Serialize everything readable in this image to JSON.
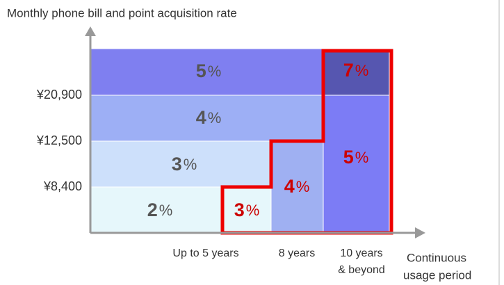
{
  "title": "Monthly phone bill and point acquisition rate",
  "y_labels": [
    "¥20,900",
    "¥12,500",
    "¥8,400"
  ],
  "x_labels": [
    [
      "Up to  5 years"
    ],
    [
      "8 years"
    ],
    [
      "10 years",
      "& beyond"
    ]
  ],
  "axis_label": [
    "Continuous",
    "usage period"
  ],
  "cells": [
    {
      "value": "5",
      "unit": "%"
    },
    {
      "value": "4",
      "unit": "%"
    },
    {
      "value": "3",
      "unit": "%"
    },
    {
      "value": "2",
      "unit": "%"
    },
    {
      "value": "3",
      "unit": "%"
    },
    {
      "value": "4",
      "unit": "%"
    },
    {
      "value": "5",
      "unit": "%"
    },
    {
      "value": "7",
      "unit": "%"
    }
  ]
}
